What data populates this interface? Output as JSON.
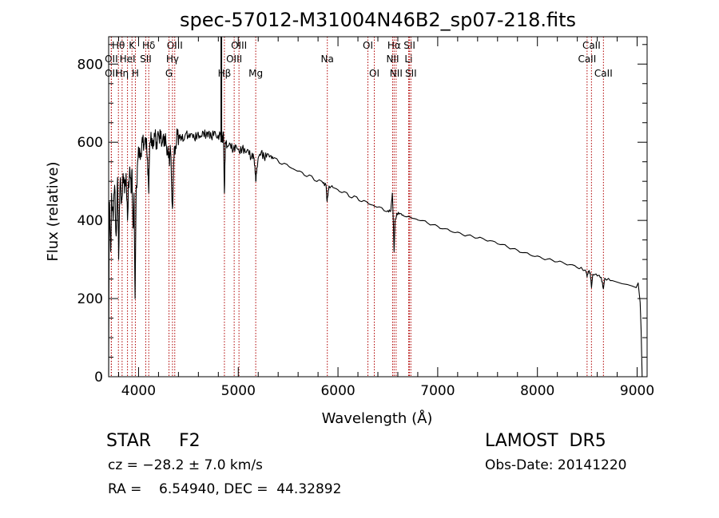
{
  "chart_data": {
    "type": "line",
    "title": "spec-57012-M31004N46B2_sp07-218.fits",
    "xlabel": "Wavelength (Å)",
    "ylabel": "Flux (relative)",
    "xlim": [
      3700,
      9100
    ],
    "ylim": [
      0,
      870
    ],
    "xticks": [
      4000,
      5000,
      6000,
      7000,
      8000,
      9000
    ],
    "yticks": [
      0,
      200,
      400,
      600,
      800
    ],
    "grid": false,
    "series": [
      {
        "color": "#000000",
        "points": [
          [
            3700,
            5
          ],
          [
            3705,
            380
          ],
          [
            3710,
            440
          ],
          [
            3720,
            320
          ],
          [
            3730,
            470
          ],
          [
            3745,
            400
          ],
          [
            3760,
            490
          ],
          [
            3775,
            360
          ],
          [
            3790,
            510
          ],
          [
            3800,
            300
          ],
          [
            3815,
            500
          ],
          [
            3830,
            450
          ],
          [
            3845,
            520
          ],
          [
            3860,
            470
          ],
          [
            3875,
            520
          ],
          [
            3889,
            400
          ],
          [
            3900,
            500
          ],
          [
            3915,
            520
          ],
          [
            3925,
            470
          ],
          [
            3935,
            530
          ],
          [
            3945,
            380
          ],
          [
            3955,
            470
          ],
          [
            3965,
            200
          ],
          [
            3975,
            460
          ],
          [
            3985,
            500
          ],
          [
            3995,
            560
          ],
          [
            4010,
            585
          ],
          [
            4025,
            570
          ],
          [
            4040,
            600
          ],
          [
            4060,
            595
          ],
          [
            4080,
            610
          ],
          [
            4090,
            560
          ],
          [
            4102,
            470
          ],
          [
            4115,
            600
          ],
          [
            4135,
            610
          ],
          [
            4150,
            590
          ],
          [
            4165,
            615
          ],
          [
            4180,
            600
          ],
          [
            4200,
            620
          ],
          [
            4220,
            610
          ],
          [
            4240,
            600
          ],
          [
            4260,
            615
          ],
          [
            4280,
            590
          ],
          [
            4300,
            560
          ],
          [
            4310,
            540
          ],
          [
            4320,
            580
          ],
          [
            4340,
            430
          ],
          [
            4355,
            560
          ],
          [
            4370,
            590
          ],
          [
            4390,
            620
          ],
          [
            4410,
            610
          ],
          [
            4430,
            615
          ],
          [
            4450,
            605
          ],
          [
            4480,
            625
          ],
          [
            4500,
            612
          ],
          [
            4530,
            622
          ],
          [
            4560,
            610
          ],
          [
            4590,
            620
          ],
          [
            4620,
            612
          ],
          [
            4650,
            625
          ],
          [
            4680,
            618
          ],
          [
            4700,
            625
          ],
          [
            4730,
            612
          ],
          [
            4760,
            628
          ],
          [
            4790,
            610
          ],
          [
            4820,
            620
          ],
          [
            4840,
            605
          ],
          [
            4851,
            622
          ],
          [
            4861,
            470
          ],
          [
            4870,
            600
          ],
          [
            4890,
            590
          ],
          [
            4920,
            595
          ],
          [
            4950,
            580
          ],
          [
            4980,
            590
          ],
          [
            5010,
            575
          ],
          [
            5040,
            585
          ],
          [
            5070,
            575
          ],
          [
            5100,
            580
          ],
          [
            5130,
            560
          ],
          [
            5150,
            570
          ],
          [
            5167,
            540
          ],
          [
            5175,
            500
          ],
          [
            5183,
            520
          ],
          [
            5200,
            560
          ],
          [
            5230,
            575
          ],
          [
            5260,
            560
          ],
          [
            5290,
            570
          ],
          [
            5320,
            565
          ],
          [
            5350,
            558
          ],
          [
            5400,
            552
          ],
          [
            5450,
            545
          ],
          [
            5500,
            540
          ],
          [
            5550,
            532
          ],
          [
            5600,
            526
          ],
          [
            5650,
            520
          ],
          [
            5700,
            514
          ],
          [
            5750,
            508
          ],
          [
            5800,
            502
          ],
          [
            5850,
            495
          ],
          [
            5880,
            490
          ],
          [
            5890,
            450
          ],
          [
            5896,
            460
          ],
          [
            5910,
            488
          ],
          [
            5950,
            484
          ],
          [
            6000,
            478
          ],
          [
            6050,
            472
          ],
          [
            6100,
            466
          ],
          [
            6150,
            460
          ],
          [
            6200,
            455
          ],
          [
            6250,
            450
          ],
          [
            6300,
            444
          ],
          [
            6350,
            439
          ],
          [
            6400,
            434
          ],
          [
            6450,
            429
          ],
          [
            6500,
            425
          ],
          [
            6530,
            424
          ],
          [
            6545,
            470
          ],
          [
            6555,
            400
          ],
          [
            6563,
            320
          ],
          [
            6572,
            400
          ],
          [
            6590,
            418
          ],
          [
            6620,
            418
          ],
          [
            6650,
            414
          ],
          [
            6700,
            410
          ],
          [
            6750,
            405
          ],
          [
            6800,
            401
          ],
          [
            6900,
            393
          ],
          [
            7000,
            385
          ],
          [
            7100,
            378
          ],
          [
            7200,
            370
          ],
          [
            7300,
            362
          ],
          [
            7400,
            355
          ],
          [
            7500,
            347
          ],
          [
            7600,
            340
          ],
          [
            7700,
            332
          ],
          [
            7800,
            324
          ],
          [
            7900,
            317
          ],
          [
            8000,
            309
          ],
          [
            8100,
            301
          ],
          [
            8200,
            294
          ],
          [
            8300,
            286
          ],
          [
            8400,
            279
          ],
          [
            8480,
            273
          ],
          [
            8498,
            255
          ],
          [
            8510,
            270
          ],
          [
            8530,
            266
          ],
          [
            8542,
            228
          ],
          [
            8555,
            262
          ],
          [
            8600,
            258
          ],
          [
            8640,
            254
          ],
          [
            8662,
            225
          ],
          [
            8675,
            252
          ],
          [
            8750,
            246
          ],
          [
            8800,
            242
          ],
          [
            8850,
            238
          ],
          [
            8900,
            236
          ],
          [
            8950,
            232
          ],
          [
            8990,
            228
          ],
          [
            9010,
            240
          ],
          [
            9030,
            190
          ],
          [
            9040,
            120
          ],
          [
            9050,
            0
          ]
        ]
      }
    ],
    "spike": {
      "x": 4830,
      "y": 870
    },
    "lines": [
      {
        "label": "Hθ",
        "x": 3798,
        "row": 0
      },
      {
        "label": "K",
        "x": 3934,
        "row": 0
      },
      {
        "label": "Hδ",
        "x": 4102,
        "row": 0
      },
      {
        "label": "OIII",
        "x": 4363,
        "row": 0
      },
      {
        "label": "OIII",
        "x": 5007,
        "row": 0
      },
      {
        "label": "OI",
        "x": 6300,
        "row": 0
      },
      {
        "label": "Hα",
        "x": 6563,
        "row": 0
      },
      {
        "label": "SII",
        "x": 6717,
        "row": 0
      },
      {
        "label": "CaII",
        "x": 8542,
        "row": 0
      },
      {
        "label": "OII",
        "x": 3727,
        "row": 1
      },
      {
        "label": "HeI",
        "x": 3889,
        "row": 1
      },
      {
        "label": "SII",
        "x": 4072,
        "row": 1
      },
      {
        "label": "Hγ",
        "x": 4340,
        "row": 1
      },
      {
        "label": "OIII",
        "x": 4959,
        "row": 1
      },
      {
        "label": "Na",
        "x": 5893,
        "row": 1
      },
      {
        "label": "NII",
        "x": 6548,
        "row": 1
      },
      {
        "label": "Li",
        "x": 6708,
        "row": 1
      },
      {
        "label": "CaII",
        "x": 8498,
        "row": 1
      },
      {
        "label": "OII",
        "x": 3727,
        "row": 2
      },
      {
        "label": "Hη",
        "x": 3835,
        "row": 2
      },
      {
        "label": "H",
        "x": 3968,
        "row": 2
      },
      {
        "label": "G",
        "x": 4305,
        "row": 2
      },
      {
        "label": "Hβ",
        "x": 4861,
        "row": 2
      },
      {
        "label": "Mg",
        "x": 5175,
        "row": 2
      },
      {
        "label": "OI",
        "x": 6364,
        "row": 2
      },
      {
        "label": "NII",
        "x": 6583,
        "row": 2
      },
      {
        "label": "SII",
        "x": 6731,
        "row": 2
      },
      {
        "label": "CaII",
        "x": 8662,
        "row": 2
      }
    ]
  },
  "info": {
    "object": "STAR     F2",
    "survey": "LAMOST  DR5",
    "velocity": "cz = −28.2 ± 7.0 km/s",
    "obs_date": "Obs-Date: 20141220",
    "coords": "RA =    6.54940, DEC =  44.32892"
  }
}
